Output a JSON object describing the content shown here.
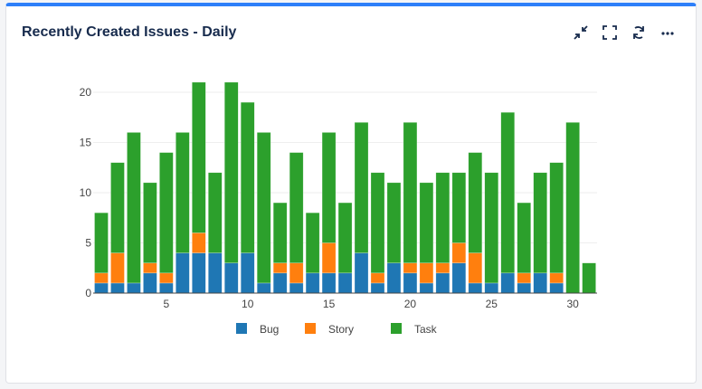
{
  "header": {
    "title": "Recently Created Issues - Daily"
  },
  "icons": [
    "collapse-icon",
    "fullscreen-icon",
    "refresh-icon",
    "more-icon"
  ],
  "chart_data": {
    "type": "bar",
    "stacked": true,
    "x": [
      1,
      2,
      3,
      4,
      5,
      6,
      7,
      8,
      9,
      10,
      11,
      12,
      13,
      14,
      15,
      16,
      17,
      18,
      19,
      20,
      21,
      22,
      23,
      24,
      25,
      26,
      27,
      28,
      29,
      30,
      31
    ],
    "series": [
      {
        "name": "Bug",
        "color": "#1f77b4",
        "values": [
          1,
          1,
          1,
          2,
          1,
          4,
          4,
          4,
          3,
          4,
          1,
          2,
          1,
          2,
          2,
          2,
          4,
          1,
          3,
          2,
          1,
          2,
          3,
          1,
          1,
          2,
          1,
          2,
          1,
          0,
          0
        ]
      },
      {
        "name": "Story",
        "color": "#ff7f0e",
        "values": [
          1,
          3,
          0,
          1,
          1,
          0,
          2,
          0,
          0,
          0,
          0,
          1,
          2,
          0,
          3,
          0,
          0,
          1,
          0,
          1,
          2,
          1,
          2,
          3,
          0,
          0,
          1,
          0,
          1,
          0,
          0
        ]
      },
      {
        "name": "Task",
        "color": "#2ca02c",
        "values": [
          6,
          9,
          15,
          8,
          12,
          12,
          15,
          8,
          18,
          15,
          15,
          6,
          11,
          6,
          11,
          7,
          13,
          10,
          8,
          14,
          8,
          9,
          7,
          10,
          11,
          16,
          7,
          10,
          11,
          17,
          3
        ]
      }
    ],
    "xticks": [
      "5",
      "10",
      "15",
      "20",
      "25",
      "30"
    ],
    "yticks": [
      "0",
      "5",
      "10",
      "15",
      "20"
    ],
    "ylim": [
      0,
      21
    ],
    "legend": "bottom",
    "grid": true
  }
}
